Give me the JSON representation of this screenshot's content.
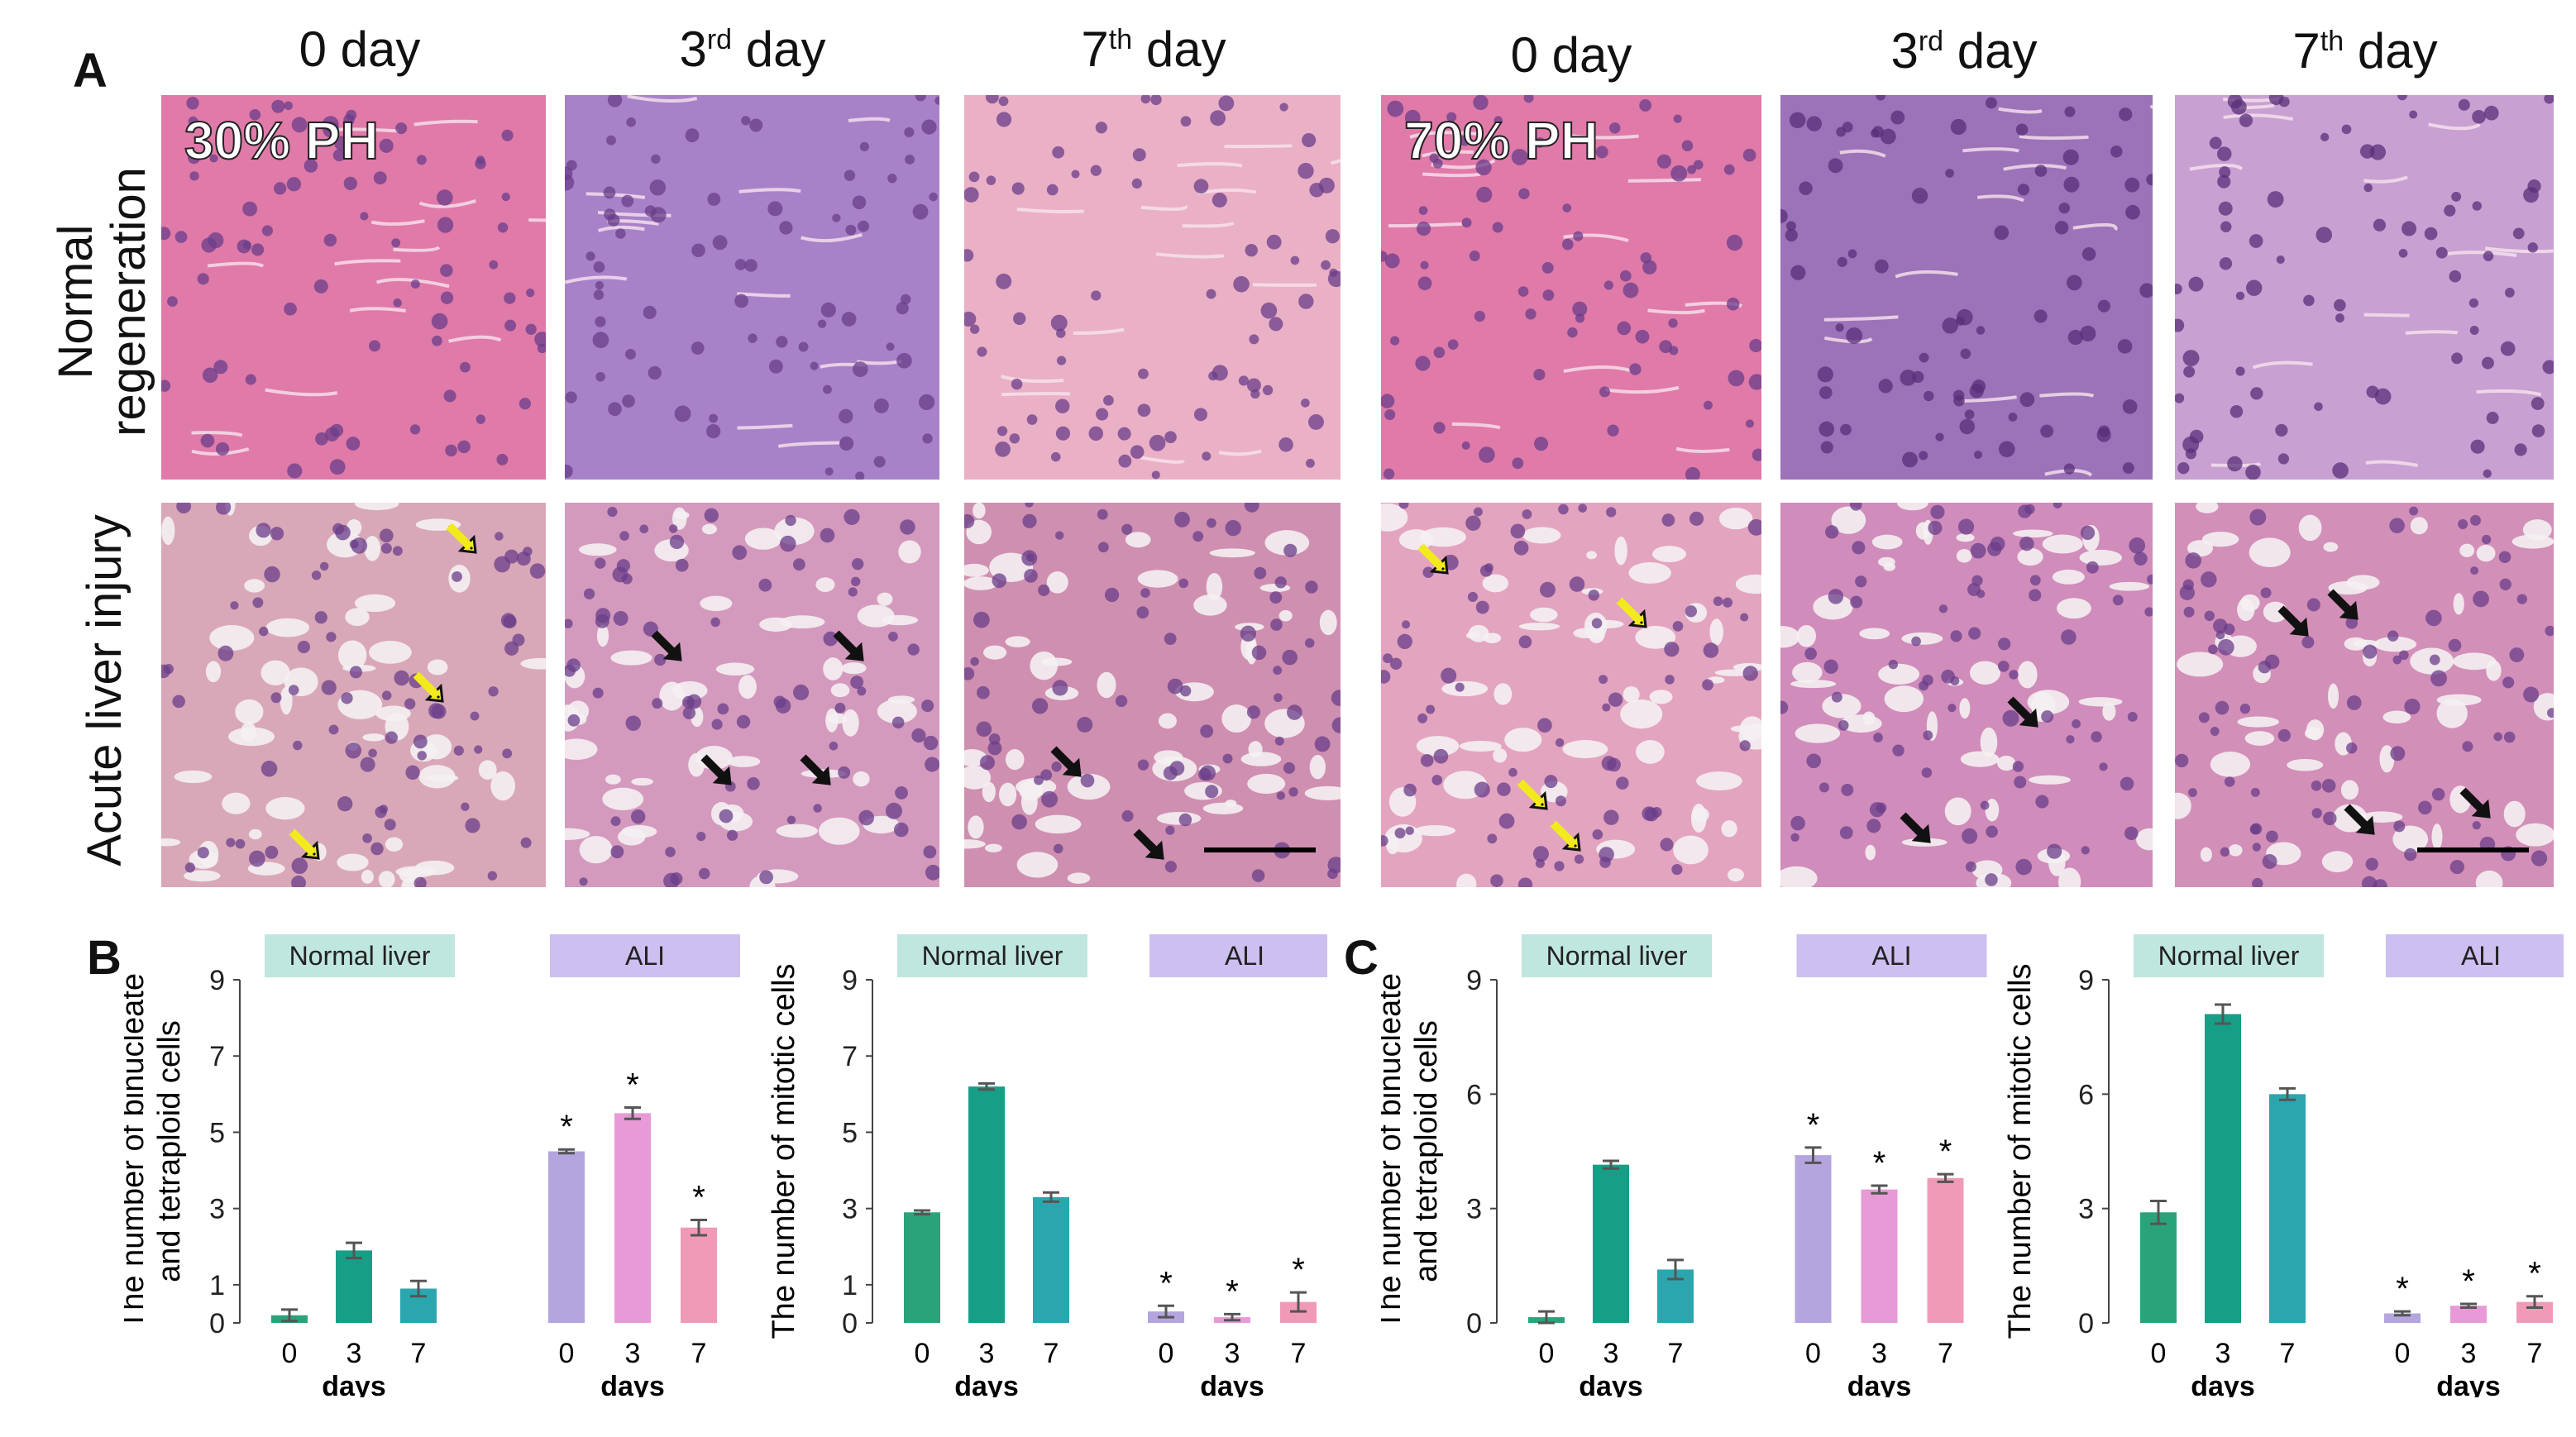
{
  "panels": {
    "a": "A",
    "b": "B",
    "c": "C"
  },
  "column_titles": [
    {
      "main": "0 day",
      "sup": ""
    },
    {
      "main": "3",
      "sup": "rd",
      "rest": " day"
    },
    {
      "main": "7",
      "sup": "th",
      "rest": " day"
    },
    {
      "main": "0 day",
      "sup": ""
    },
    {
      "main": "3",
      "sup": "rd",
      "rest": " day"
    },
    {
      "main": "7",
      "sup": "th",
      "rest": " day"
    }
  ],
  "row_labels": {
    "normal_line1": "Normal",
    "normal_line2": "regeneration",
    "injury": "Acute liver injury"
  },
  "overlays": {
    "ph30": "30% PH",
    "ph70": "70% PH"
  },
  "colors": {
    "normal_tissue": "#e07aa8",
    "normal_tissue_purple": "#a882c8",
    "injury_tissue": "#d9a8b8",
    "nucleus": "#6a3d8a",
    "arrow_yellow": "#f2ea1c",
    "arrow_black": "#111111",
    "bar_green1": "#2aa37a",
    "bar_green2": "#179e86",
    "bar_teal": "#2ba6ae",
    "bar_lav": "#b4a5de",
    "bar_pink1": "#e79ad6",
    "bar_pink2": "#f09ab8",
    "pill_normal": "#bfe6df",
    "pill_ali": "#cdbff0"
  },
  "chart_data": [
    {
      "type": "bar",
      "title": "Normal liver",
      "ylabel": "The number of binucleate and tetraploid cells",
      "xlabel": "days",
      "categories": [
        "0",
        "3",
        "7"
      ],
      "values": [
        0.2,
        1.9,
        0.9
      ],
      "errors": [
        0.15,
        0.2,
        0.2
      ],
      "ylim": [
        0,
        9
      ],
      "yticks": [
        "0",
        "1",
        "3",
        "5",
        "7",
        "9"
      ],
      "significance": [
        "",
        "",
        ""
      ]
    },
    {
      "type": "bar",
      "title": "ALI",
      "xlabel": "days",
      "categories": [
        "0",
        "3",
        "7"
      ],
      "values": [
        4.5,
        5.5,
        2.5
      ],
      "errors": [
        0.05,
        0.15,
        0.2
      ],
      "ylim": [
        0,
        9
      ],
      "significance": [
        "*",
        "*",
        "*"
      ]
    },
    {
      "type": "bar",
      "title": "Normal liver",
      "ylabel": "The number of mitotic cells",
      "xlabel": "days",
      "categories": [
        "0",
        "3",
        "7"
      ],
      "values": [
        2.9,
        6.2,
        3.3
      ],
      "errors": [
        0.05,
        0.08,
        0.12
      ],
      "ylim": [
        0,
        9
      ],
      "yticks": [
        "0",
        "1",
        "3",
        "5",
        "7",
        "9"
      ],
      "significance": [
        "",
        "",
        ""
      ]
    },
    {
      "type": "bar",
      "title": "ALI",
      "xlabel": "days",
      "categories": [
        "0",
        "3",
        "7"
      ],
      "values": [
        0.3,
        0.15,
        0.55
      ],
      "errors": [
        0.15,
        0.08,
        0.25
      ],
      "ylim": [
        0,
        9
      ],
      "significance": [
        "*",
        "*",
        "*"
      ]
    },
    {
      "type": "bar",
      "title": "Normal liver",
      "ylabel": "The number of binucleate and tetraploid cells",
      "xlabel": "days",
      "categories": [
        "0",
        "3",
        "7"
      ],
      "values": [
        0.15,
        4.15,
        1.4
      ],
      "errors": [
        0.15,
        0.1,
        0.25
      ],
      "ylim": [
        0,
        9
      ],
      "yticks": [
        "0",
        "3",
        "6",
        "9"
      ],
      "significance": [
        "",
        "",
        ""
      ]
    },
    {
      "type": "bar",
      "title": "ALI",
      "xlabel": "days",
      "categories": [
        "0",
        "3",
        "7"
      ],
      "values": [
        4.4,
        3.5,
        3.8
      ],
      "errors": [
        0.2,
        0.1,
        0.1
      ],
      "ylim": [
        0,
        9
      ],
      "significance": [
        "*",
        "*",
        "*"
      ]
    },
    {
      "type": "bar",
      "title": "Normal liver",
      "ylabel": "The number of mitotic cells",
      "xlabel": "days",
      "categories": [
        "0",
        "3",
        "7"
      ],
      "values": [
        2.9,
        8.1,
        6.0
      ],
      "errors": [
        0.3,
        0.25,
        0.15
      ],
      "ylim": [
        0,
        9
      ],
      "yticks": [
        "0",
        "3",
        "6",
        "9"
      ],
      "significance": [
        "",
        "",
        ""
      ]
    },
    {
      "type": "bar",
      "title": "ALI",
      "xlabel": "days",
      "categories": [
        "0",
        "3",
        "7"
      ],
      "values": [
        0.25,
        0.45,
        0.55
      ],
      "errors": [
        0.05,
        0.05,
        0.15
      ],
      "ylim": [
        0,
        9
      ],
      "significance": [
        "*",
        "*",
        "*"
      ]
    }
  ]
}
